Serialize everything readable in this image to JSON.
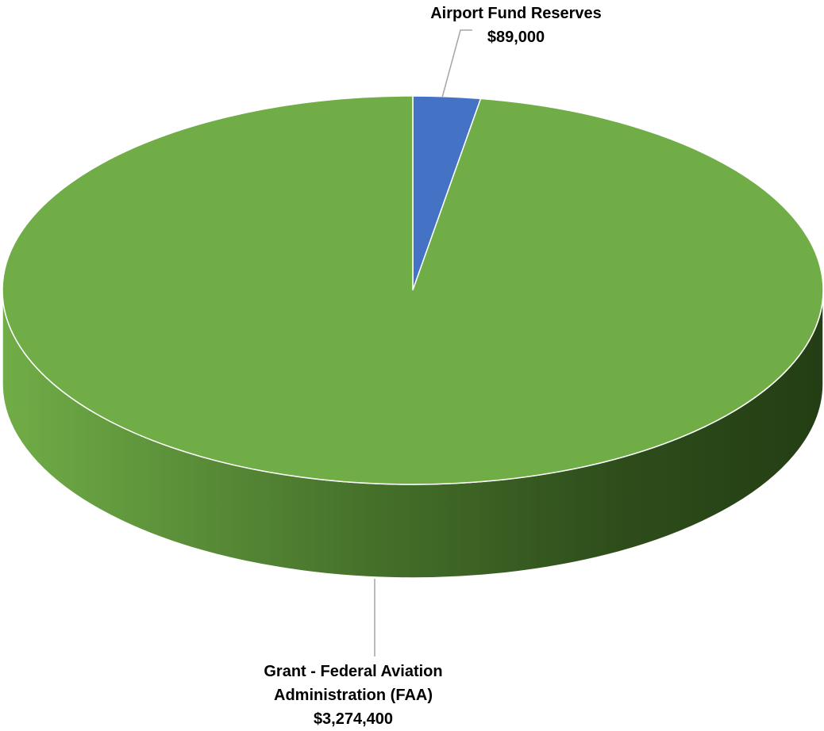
{
  "chart_data": {
    "type": "pie",
    "title": "",
    "categories": [
      "Airport Fund Reserves",
      "Grant - Federal Aviation Administration (FAA)"
    ],
    "values": [
      89000,
      3274400
    ],
    "value_labels": [
      "$89,000",
      "$3,274,400"
    ],
    "label_lines": [
      [
        "Airport Fund Reserves",
        "$89,000"
      ],
      [
        "Grant - Federal Aviation",
        "Administration (FAA)",
        "$3,274,400"
      ]
    ],
    "colors": [
      "#4472C4",
      "#70AD47"
    ],
    "style": "3d",
    "legend": "none",
    "grid": false
  }
}
